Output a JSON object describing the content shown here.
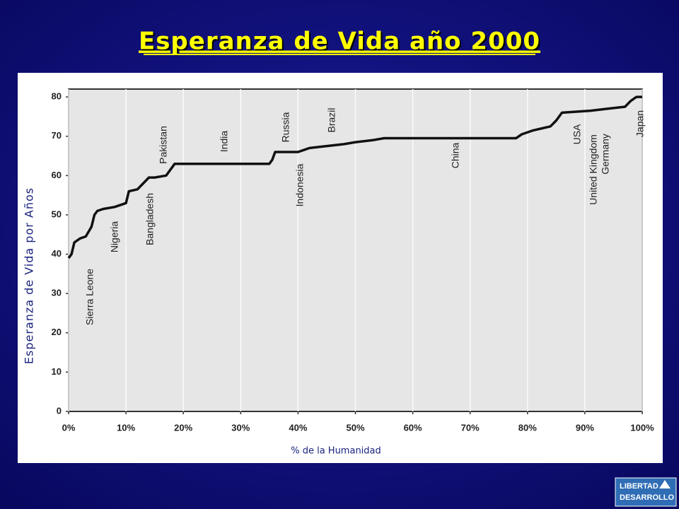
{
  "chart_data": {
    "type": "line",
    "title": "Esperanza de Vida año 2000",
    "y_label": "Esperanza de Vida por Años",
    "x_label": "% de  la Humanidad",
    "x": [
      0,
      0.5,
      1,
      2,
      3,
      4,
      4.5,
      5,
      6,
      8,
      10,
      10.5,
      12,
      13,
      14,
      15,
      17,
      18,
      18.5,
      20,
      35,
      35.5,
      36,
      40,
      41,
      42,
      45,
      48,
      50,
      53,
      55,
      57,
      78,
      79,
      81,
      84,
      85,
      86,
      91,
      94,
      97,
      98,
      99,
      100
    ],
    "values": [
      39,
      40,
      43,
      44,
      44.5,
      47,
      50,
      51,
      51.5,
      52,
      53,
      56,
      56.5,
      58,
      59.5,
      59.5,
      60,
      62,
      63,
      63,
      63,
      64,
      66,
      66,
      66.5,
      67,
      67.5,
      68,
      68.5,
      69,
      69.5,
      69.5,
      69.5,
      70.5,
      71.5,
      72.5,
      74,
      76,
      76.5,
      77,
      77.5,
      79,
      80,
      80
    ],
    "color": "#111111",
    "xlim": [
      0,
      100
    ],
    "ylim": [
      0,
      82
    ],
    "xticks": [
      {
        "value": 0,
        "label": "0%"
      },
      {
        "value": 10,
        "label": "10%"
      },
      {
        "value": 20,
        "label": "20%"
      },
      {
        "value": 30,
        "label": "30%"
      },
      {
        "value": 40,
        "label": "40%"
      },
      {
        "value": 50,
        "label": "50%"
      },
      {
        "value": 60,
        "label": "60%"
      },
      {
        "value": 70,
        "label": "70%"
      },
      {
        "value": 80,
        "label": "80%"
      },
      {
        "value": 90,
        "label": "90%"
      },
      {
        "value": 100,
        "label": "100%"
      }
    ],
    "yticks": [
      0,
      10,
      20,
      30,
      40,
      50,
      60,
      70,
      80
    ],
    "grid": true,
    "annotations": [
      "Sierra Leone",
      "Nigeria",
      "Bangladesh",
      "Pakistan",
      "India",
      "Russia",
      "Indonesia",
      "Brazil",
      "China",
      "USA",
      "United Kingdom",
      "Germany",
      "Japan"
    ]
  },
  "logo": [
    "LIBERTAD",
    "DESARROLLO"
  ]
}
